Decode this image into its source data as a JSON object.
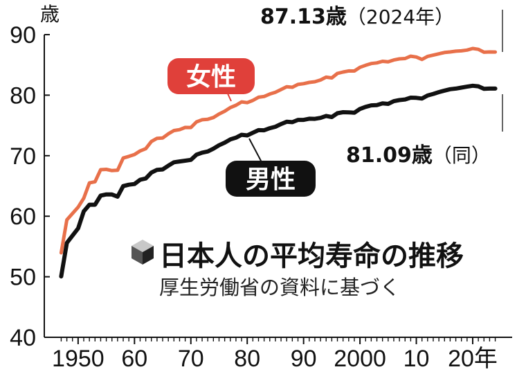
{
  "chart_data": {
    "type": "line",
    "title": "日本人の平均寿命の推移",
    "subtitle": "厚生労働省の資料に基づく",
    "y_unit": "歳",
    "x_unit": "年",
    "xlim": [
      1944,
      2027
    ],
    "ylim": [
      40,
      90
    ],
    "y_ticks": [
      40,
      50,
      60,
      70,
      80,
      90
    ],
    "x_ticks": [
      {
        "value": 1950,
        "label": "1950"
      },
      {
        "value": 1960,
        "label": "60"
      },
      {
        "value": 1970,
        "label": "70"
      },
      {
        "value": 1980,
        "label": "80"
      },
      {
        "value": 1990,
        "label": "90"
      },
      {
        "value": 2000,
        "label": "2000"
      },
      {
        "value": 2010,
        "label": "10"
      },
      {
        "value": 2020,
        "label": "20年"
      }
    ],
    "series": [
      {
        "name": "女性",
        "color": "#e8704a",
        "x": [
          1947,
          1948,
          1950,
          1951,
          1952,
          1953,
          1954,
          1955,
          1956,
          1957,
          1958,
          1959,
          1960,
          1961,
          1962,
          1963,
          1964,
          1965,
          1966,
          1967,
          1968,
          1969,
          1970,
          1971,
          1972,
          1973,
          1974,
          1975,
          1976,
          1977,
          1978,
          1979,
          1980,
          1981,
          1982,
          1983,
          1984,
          1985,
          1986,
          1987,
          1988,
          1989,
          1990,
          1991,
          1992,
          1993,
          1994,
          1995,
          1996,
          1997,
          1998,
          1999,
          2000,
          2001,
          2002,
          2003,
          2004,
          2005,
          2006,
          2007,
          2008,
          2009,
          2010,
          2011,
          2012,
          2013,
          2014,
          2015,
          2016,
          2017,
          2018,
          2019,
          2020,
          2021,
          2022,
          2023,
          2024
        ],
        "values": [
          53.96,
          59.4,
          61.5,
          62.97,
          65.5,
          65.7,
          67.69,
          67.75,
          67.54,
          67.6,
          69.61,
          69.88,
          70.19,
          70.79,
          71.16,
          72.34,
          72.87,
          72.92,
          73.61,
          74.15,
          74.3,
          74.67,
          74.66,
          75.58,
          75.94,
          76.02,
          76.31,
          76.89,
          77.35,
          77.95,
          78.33,
          78.89,
          78.76,
          79.13,
          79.66,
          79.78,
          80.18,
          80.48,
          80.93,
          81.39,
          81.3,
          81.77,
          81.9,
          82.11,
          82.22,
          82.51,
          82.98,
          82.85,
          83.59,
          83.82,
          84.01,
          83.99,
          84.6,
          84.93,
          85.23,
          85.33,
          85.59,
          85.52,
          85.81,
          85.99,
          86.05,
          86.44,
          86.3,
          85.9,
          86.41,
          86.61,
          86.83,
          87.05,
          87.14,
          87.26,
          87.32,
          87.45,
          87.71,
          87.57,
          87.09,
          87.14,
          87.13
        ]
      },
      {
        "name": "男性",
        "color": "#111111",
        "x": [
          1947,
          1948,
          1950,
          1951,
          1952,
          1953,
          1954,
          1955,
          1956,
          1957,
          1958,
          1959,
          1960,
          1961,
          1962,
          1963,
          1964,
          1965,
          1966,
          1967,
          1968,
          1969,
          1970,
          1971,
          1972,
          1973,
          1974,
          1975,
          1976,
          1977,
          1978,
          1979,
          1980,
          1981,
          1982,
          1983,
          1984,
          1985,
          1986,
          1987,
          1988,
          1989,
          1990,
          1991,
          1992,
          1993,
          1994,
          1995,
          1996,
          1997,
          1998,
          1999,
          2000,
          2001,
          2002,
          2003,
          2004,
          2005,
          2006,
          2007,
          2008,
          2009,
          2010,
          2011,
          2012,
          2013,
          2014,
          2015,
          2016,
          2017,
          2018,
          2019,
          2020,
          2021,
          2022,
          2023,
          2024
        ],
        "values": [
          50.06,
          55.6,
          58.0,
          60.8,
          61.9,
          61.9,
          63.41,
          63.6,
          63.59,
          63.24,
          64.98,
          65.21,
          65.32,
          66.03,
          66.23,
          67.21,
          67.67,
          67.74,
          68.35,
          68.91,
          69.05,
          69.18,
          69.31,
          70.17,
          70.5,
          70.7,
          71.16,
          71.73,
          72.15,
          72.69,
          72.97,
          73.46,
          73.35,
          73.79,
          74.22,
          74.2,
          74.54,
          74.78,
          75.23,
          75.61,
          75.54,
          75.91,
          75.92,
          76.11,
          76.09,
          76.25,
          76.57,
          76.38,
          77.01,
          77.19,
          77.16,
          77.1,
          77.72,
          78.07,
          78.32,
          78.36,
          78.64,
          78.56,
          79.0,
          79.19,
          79.29,
          79.59,
          79.55,
          79.44,
          79.94,
          80.21,
          80.5,
          80.75,
          80.98,
          81.09,
          81.25,
          81.41,
          81.56,
          81.47,
          81.05,
          81.09,
          81.09
        ]
      }
    ],
    "annotations": {
      "female": {
        "value": "87.13歳",
        "note": "（2024年）"
      },
      "male": {
        "value": "81.09歳",
        "note": "（同）"
      }
    }
  }
}
